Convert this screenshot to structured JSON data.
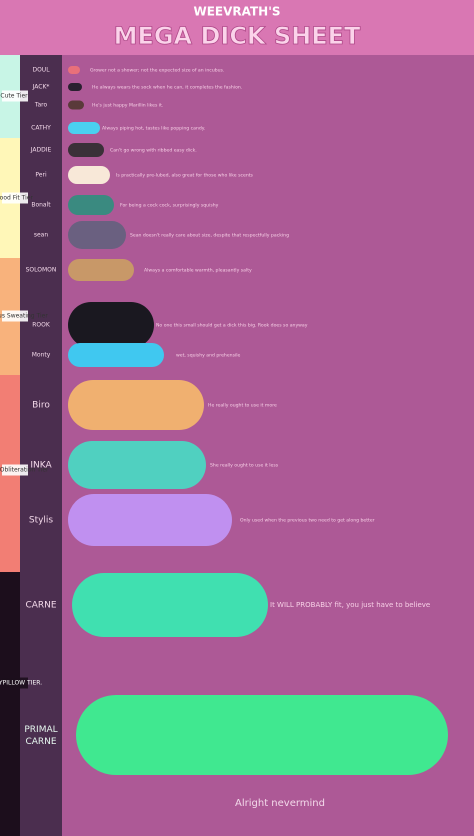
{
  "header": {
    "subtitle": "WEEVRATH'S",
    "title": "MEGA DICK SHEET"
  },
  "tiers": [
    "Cute Tier",
    "Good Fit Tier",
    "Nervous Sweating Tier",
    "Organ Obliteration Tier",
    "BODYPILLOW TIER."
  ],
  "rows": [
    {
      "name": "DOUL",
      "note": "Grower not a shower; not the expected size of an incubus."
    },
    {
      "name": "JACK*",
      "note": "He always wears the sock when he can, it completes the fashion."
    },
    {
      "name": "Taro",
      "note": "He's just happy Marillin likes it."
    },
    {
      "name": "CATHY",
      "note": "Always piping hot, tastes like popping candy."
    },
    {
      "name": "JADDIE",
      "note": "Can't go wrong with ribbed easy dick."
    },
    {
      "name": "Peri",
      "note": "Is practically pre-lubed, also great for those who like scents"
    },
    {
      "name": "Bonalt",
      "note": "For being a cock cock, surprisingly squishy"
    },
    {
      "name": "sean",
      "note": "Sean doesn't really care about size, despite that respectfully packing"
    },
    {
      "name": "SOLOMON",
      "note": "Always a comfortable warmth, pleasantly salty"
    },
    {
      "name": "ROOK",
      "note": "No one this small should get a dick this big. Rook does so anyway"
    },
    {
      "name": "Monty",
      "note": "wet, squishy and prehensile"
    },
    {
      "name": "Biro",
      "note": "He really ought to use it more"
    },
    {
      "name": "INKA",
      "note": "She really ought to use it less"
    },
    {
      "name": "Stylis",
      "note": "Only used when the previous two need to get along better"
    },
    {
      "name": "CARNE",
      "note": "It WILL PROBABLY fit, you just have to believe"
    },
    {
      "name": "PRIMAL CARNE",
      "note": null
    }
  ],
  "footer": "Alright nevermind"
}
